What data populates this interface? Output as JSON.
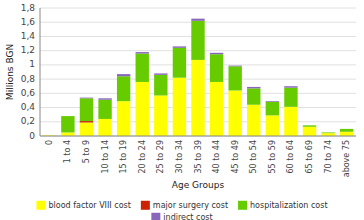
{
  "chart_data": {
    "type": "bar",
    "stacked": true,
    "categories": [
      "0",
      "1 to 4",
      "5 to 9",
      "10 to 14",
      "15 to 19",
      "20 to 24",
      "25 to 29",
      "30 to 34",
      "35 to 39",
      "40 to 44",
      "45 to 49",
      "50 to 54",
      "55 to 59",
      "60 to 64",
      "65 to 69",
      "70 to 74",
      "above 75"
    ],
    "series": [
      {
        "name": "blood factor VIII cost",
        "color": "#ffff00",
        "values": [
          0.01,
          0.05,
          0.19,
          0.24,
          0.49,
          0.76,
          0.57,
          0.82,
          1.07,
          0.76,
          0.64,
          0.44,
          0.29,
          0.41,
          0.13,
          0.04,
          0.06
        ]
      },
      {
        "name": "major surgery cost",
        "color": "#cc2200",
        "values": [
          0.0,
          0.0,
          0.02,
          0.0,
          0.0,
          0.0,
          0.0,
          0.0,
          0.0,
          0.0,
          0.0,
          0.0,
          0.0,
          0.0,
          0.0,
          0.0,
          0.0
        ]
      },
      {
        "name": "hospitalization cost",
        "color": "#66cc00",
        "values": [
          0.0,
          0.23,
          0.32,
          0.27,
          0.35,
          0.4,
          0.29,
          0.42,
          0.55,
          0.39,
          0.34,
          0.23,
          0.19,
          0.27,
          0.02,
          0.01,
          0.04
        ]
      },
      {
        "name": "indirect cost",
        "color": "#8866bb",
        "values": [
          0.0,
          0.0,
          0.01,
          0.02,
          0.03,
          0.02,
          0.02,
          0.02,
          0.03,
          0.02,
          0.01,
          0.02,
          0.01,
          0.02,
          0.0,
          0.0,
          0.0
        ]
      }
    ],
    "xlabel": "Age Groups",
    "ylabel": "Millions BGN",
    "ylim": [
      0,
      1.8
    ],
    "yticks": [
      0,
      {
        "value": 0.2,
        "label": "0,2"
      },
      {
        "value": 0.4,
        "label": "0,4"
      },
      {
        "value": 0.6,
        "label": "0,6"
      },
      {
        "value": 0.8,
        "label": "0,8"
      },
      1,
      {
        "value": 1.2,
        "label": "1,2"
      },
      {
        "value": 1.4,
        "label": "1,4"
      },
      {
        "value": 1.6,
        "label": "1,6"
      },
      {
        "value": 1.8,
        "label": "1,8"
      }
    ],
    "grid": true,
    "legend": "bottom"
  }
}
